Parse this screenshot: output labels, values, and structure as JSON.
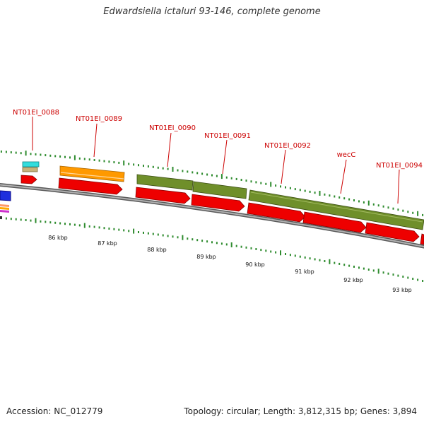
{
  "title": "Edwardsiella ictaluri 93-146, complete genome",
  "footer": {
    "accession": "Accession: NC_012779",
    "summary": "Topology: circular; Length: 3,812,315 bp; Genes: 3,894"
  },
  "colors": {
    "backbone": "#7f7f7f",
    "tick": "#2e8b2e",
    "label": "#cc0000",
    "cds": "#ee0000",
    "gene_olive": "#6f8f2a",
    "gene_orange": "#ff9900",
    "gene_cyan": "#33dddd",
    "gene_tan": "#c8b37a",
    "gene_blue": "#1f2fdd"
  },
  "scale": {
    "unit": "kbp",
    "labels": [
      "86 kbp",
      "87 kbp",
      "88 kbp",
      "89 kbp",
      "90 kbp",
      "91 kbp",
      "92 kbp",
      "93 kbp"
    ]
  },
  "genes": [
    {
      "name": "NT01EI_0088",
      "row": "top",
      "color": "cyan",
      "start": 85.39,
      "end": 85.7
    },
    {
      "name": "NT01EI_0089",
      "row": "top",
      "color": "orange",
      "start": 86.19,
      "end": 87.5
    },
    {
      "name": "NT01EI_0090",
      "row": "top",
      "color": "olive",
      "start": 87.35,
      "end": 88.47
    },
    {
      "name": "NT01EI_0091",
      "row": "top",
      "color": "olive",
      "start": 88.49,
      "end": 89.53
    },
    {
      "name": "wecC",
      "row": "top",
      "color": "olive",
      "start": 89.6,
      "end": 93.15
    },
    {
      "name": "NT01EI_0092",
      "label": "NT01EI_0092",
      "row": "none"
    },
    {
      "name": "NT01EI_0094",
      "label": "NT01EI_0094",
      "row": "none"
    }
  ],
  "labels": [
    {
      "text": "NT01EI_0088"
    },
    {
      "text": "NT01EI_0089"
    },
    {
      "text": "NT01EI_0090"
    },
    {
      "text": "NT01EI_0091"
    },
    {
      "text": "NT01EI_0092"
    },
    {
      "text": "wecC"
    },
    {
      "text": "NT01EI_0094"
    }
  ]
}
